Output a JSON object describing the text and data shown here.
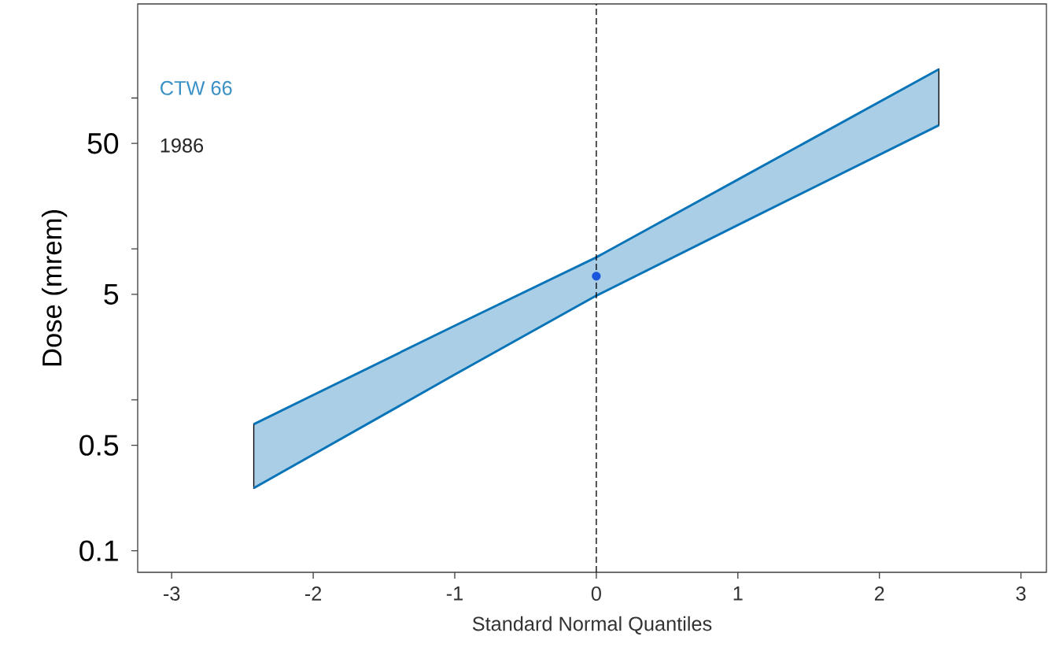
{
  "chart_data": {
    "type": "line",
    "xlabel": "Standard Normal Quantiles",
    "ylabel": "Dose (mrem)",
    "annotations": [
      "CTW 66",
      "1986"
    ],
    "log": "y",
    "xlim": [
      -3.24,
      3.18
    ],
    "xticks": [
      -3,
      -2,
      -1,
      0,
      1,
      2,
      3
    ],
    "ylim": [
      0.072,
      420
    ],
    "yticks": [
      0.1,
      0.5,
      {
        "value": 1,
        "label": null
      },
      5,
      {
        "value": 10,
        "label": null
      },
      50,
      {
        "value": 100,
        "label": null
      }
    ],
    "ref_lines": [
      {
        "axis": "x",
        "value": 0,
        "color": "#000000",
        "line_style": "dashed"
      }
    ],
    "series": [
      {
        "color": "#0a74b8",
        "x": [
          -2.42,
          -1,
          0,
          1,
          2.42
        ],
        "values": [
          0.69,
          3.1,
          8.8,
          28.8,
          155
        ],
        "lower": [
          0.26,
          1.47,
          4.9,
          14.4,
          66
        ],
        "upper": [
          0.69,
          3.1,
          8.8,
          28.8,
          155
        ]
      },
      {
        "color": "#0a74b8",
        "x": [
          -2.42,
          -1,
          0,
          1,
          2.42
        ],
        "values": [
          0.26,
          1.47,
          4.9,
          14.4,
          66
        ]
      },
      {
        "type": "scatter",
        "color": "#1a56db",
        "marker": "circle",
        "x": [
          0
        ],
        "values": [
          6.6
        ]
      }
    ]
  }
}
